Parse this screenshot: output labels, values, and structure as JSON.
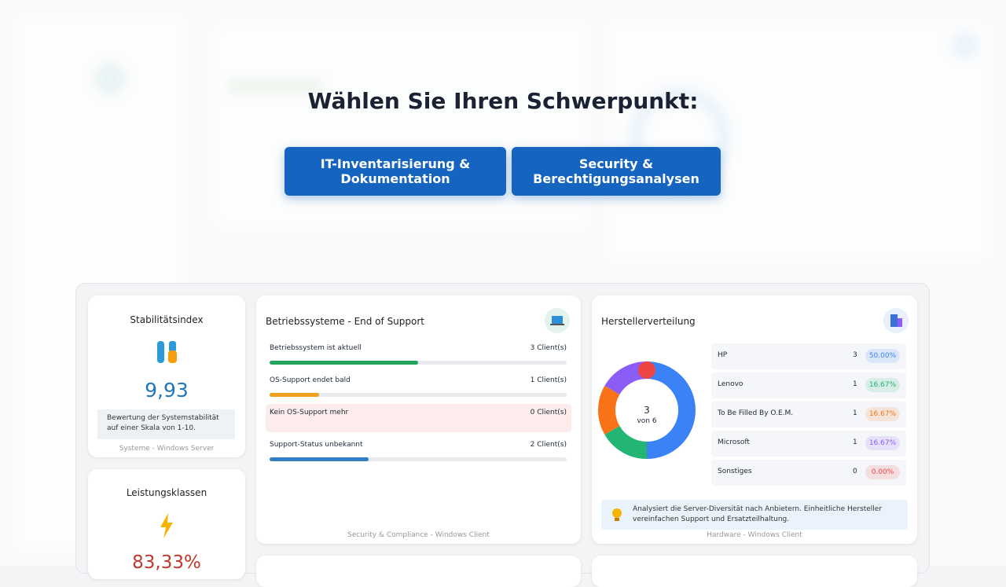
{
  "overlay": {
    "heading": "Wählen Sie Ihren Schwerpunkt:",
    "buttons": [
      "IT-Inventarisierung & Dokumentation",
      "Security & Berechtigungsanalysen"
    ]
  },
  "stability": {
    "title": "Stabilitätsindex",
    "value": "9,93",
    "description": "Bewertung der Systemstabilität auf einer Skala von 1-10.",
    "footer": "Systeme - Windows Server"
  },
  "performance": {
    "title": "Leistungsklassen",
    "value": "83,33%"
  },
  "os_support": {
    "title": "Betriebssysteme - End of Support",
    "footer": "Security & Compliance - Windows Client",
    "rows": [
      {
        "label": "Betriebssystem ist aktuell",
        "count": 3,
        "count_label": "3 Client(s)",
        "color": "#22a55a"
      },
      {
        "label": "OS-Support endet bald",
        "count": 1,
        "count_label": "1 Client(s)",
        "color": "#f0a020"
      },
      {
        "label": "Kein OS-Support mehr",
        "count": 0,
        "count_label": "0 Client(s)",
        "color": "#e04545"
      },
      {
        "label": "Support-Status unbekannt",
        "count": 2,
        "count_label": "2 Client(s)",
        "color": "#2f7fc1"
      }
    ]
  },
  "manufacturers": {
    "title": "Herstellerverteilung",
    "center_value": "3",
    "center_label": "von 6",
    "footer": "Hardware - Windows Client",
    "insight": "Analysiert die Server-Diversität nach Anbietern. Einheitliche Hersteller vereinfachen Support und Ersatzteilhaltung.",
    "rows": [
      {
        "name": "HP",
        "count": 3,
        "share": {
          "value": 50,
          "label": "50.00%"
        },
        "color": "#3b82f6"
      },
      {
        "name": "Lenovo",
        "count": 1,
        "share": {
          "value": 16.67,
          "label": "16.67%"
        },
        "color": "#22b573"
      },
      {
        "name": "To Be Filled By O.E.M.",
        "count": 1,
        "share": {
          "value": 16.67,
          "label": "16.67%"
        },
        "color": "#f97316"
      },
      {
        "name": "Microsoft",
        "count": 1,
        "share": {
          "value": 16.67,
          "label": "16.67%"
        },
        "color": "#8b5cf6"
      },
      {
        "name": "Sonstiges",
        "count": 0,
        "share": {
          "value": 0,
          "label": "0.00%"
        },
        "color": "#ef4444"
      }
    ]
  }
}
